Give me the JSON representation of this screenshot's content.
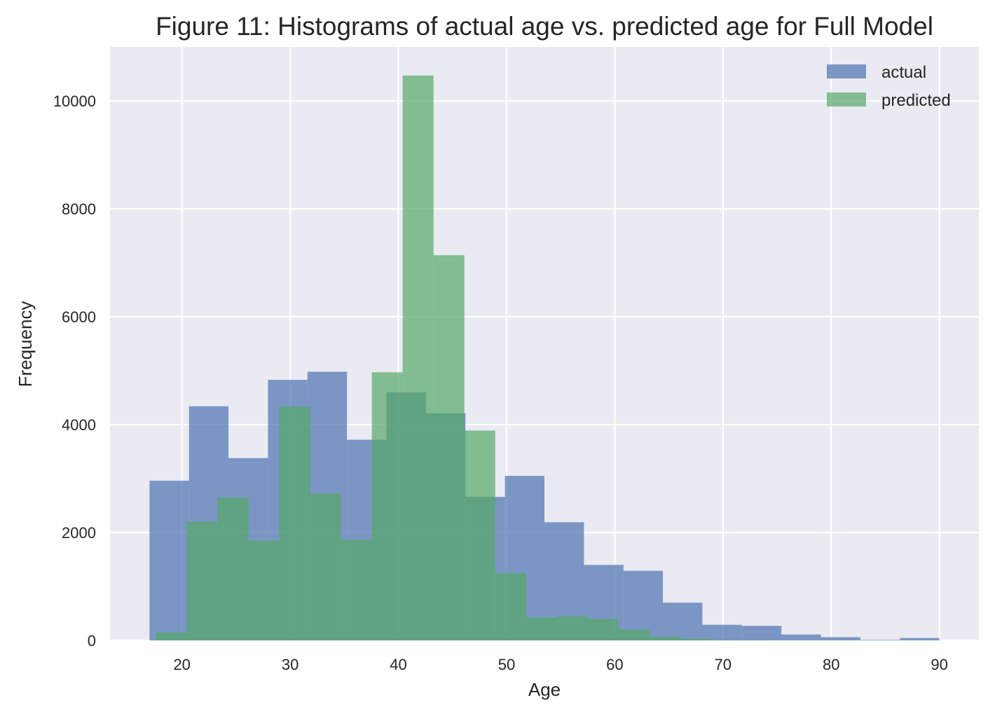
{
  "chart_data": {
    "type": "bar",
    "title": "Figure 11: Histograms of actual age vs. predicted age for Full Model",
    "xlabel": "Age",
    "ylabel": "Frequency",
    "xlim": [
      13.35,
      93.65
    ],
    "ylim": [
      0,
      11000
    ],
    "xticks": [
      20,
      30,
      40,
      50,
      60,
      70,
      80,
      90
    ],
    "yticks": [
      0,
      2000,
      4000,
      6000,
      8000,
      10000
    ],
    "grid": true,
    "legend_position": "top-right",
    "colors": {
      "background": "#EAEAF2",
      "grid": "#FFFFFF",
      "actual": "#4C72B0",
      "predicted": "#55A868"
    },
    "series": [
      {
        "name": "actual",
        "bin_edges": [
          17.0,
          20.65,
          24.3,
          27.95,
          31.6,
          35.25,
          38.9,
          42.55,
          46.2,
          49.85,
          53.5,
          57.15,
          60.8,
          64.45,
          68.1,
          71.75,
          75.4,
          79.05,
          82.7,
          86.35,
          90.0
        ],
        "values": [
          2960,
          4340,
          3380,
          4830,
          4980,
          3720,
          4600,
          4210,
          2660,
          3050,
          2190,
          1400,
          1290,
          700,
          290,
          270,
          110,
          60,
          10,
          45
        ]
      },
      {
        "name": "predicted",
        "bin_edges": [
          17.6,
          20.45,
          23.3,
          26.15,
          29.0,
          31.85,
          34.7,
          37.55,
          40.4,
          43.25,
          46.1,
          48.95,
          51.8,
          54.65,
          57.5,
          60.35,
          63.2,
          66.05,
          68.9,
          71.75,
          74.6
        ],
        "values": [
          150,
          2200,
          2650,
          1850,
          4330,
          2720,
          1870,
          4970,
          10470,
          7140,
          3890,
          1250,
          430,
          450,
          400,
          200,
          70,
          30,
          5,
          2
        ]
      }
    ]
  }
}
